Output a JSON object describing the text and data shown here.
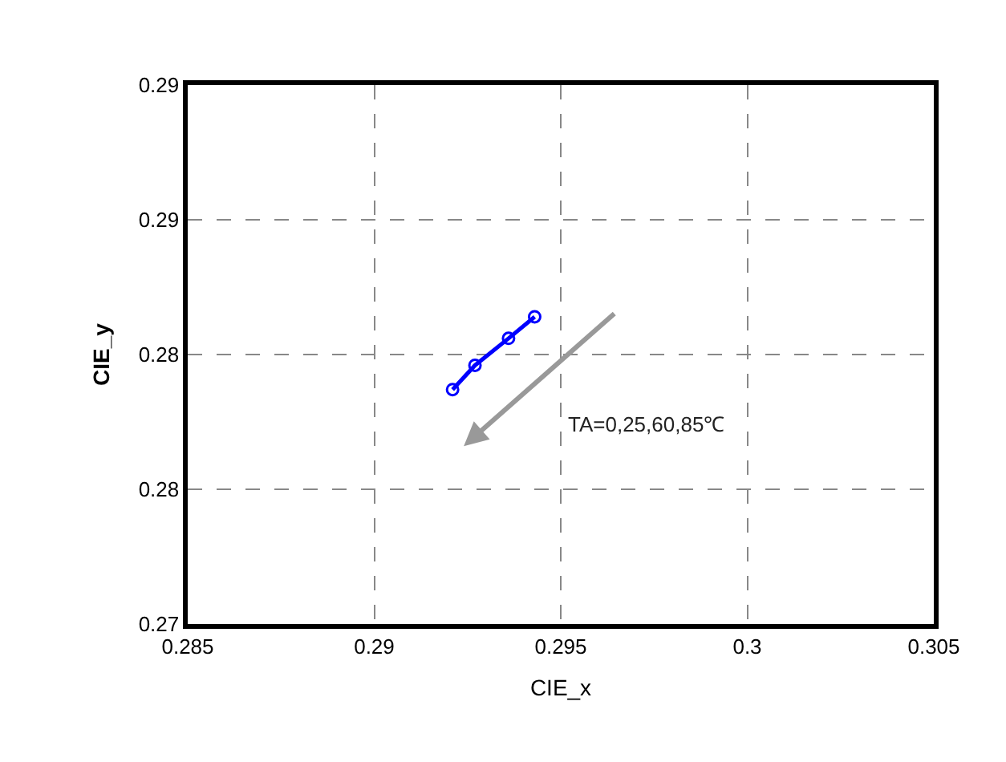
{
  "chart_data": {
    "type": "line",
    "xlabel": "CIE_x",
    "ylabel": "CIE_y",
    "x": [
      0.2921,
      0.2927,
      0.2936,
      0.2943
    ],
    "series": [
      {
        "color": "#0000ff",
        "values": [
          0.2787,
          0.2796,
          0.2806,
          0.2814
        ]
      }
    ],
    "marker": "circle",
    "line_style": "solid",
    "grid": true,
    "xlim": [
      0.285,
      0.305
    ],
    "xticks": [
      0.285,
      0.29,
      0.295,
      0.3,
      0.305
    ],
    "ylim": [
      0.27,
      0.29
    ],
    "yticks": [
      {
        "value": 0.27,
        "label": "0.27"
      },
      {
        "value": 0.275,
        "label": "0.28"
      },
      {
        "value": 0.28,
        "label": "0.28"
      },
      {
        "value": 0.285,
        "label": "0.29"
      },
      {
        "value": 0.29,
        "label": "0.29"
      }
    ],
    "annotations": [
      "TA=0,25,60,85℃"
    ]
  }
}
